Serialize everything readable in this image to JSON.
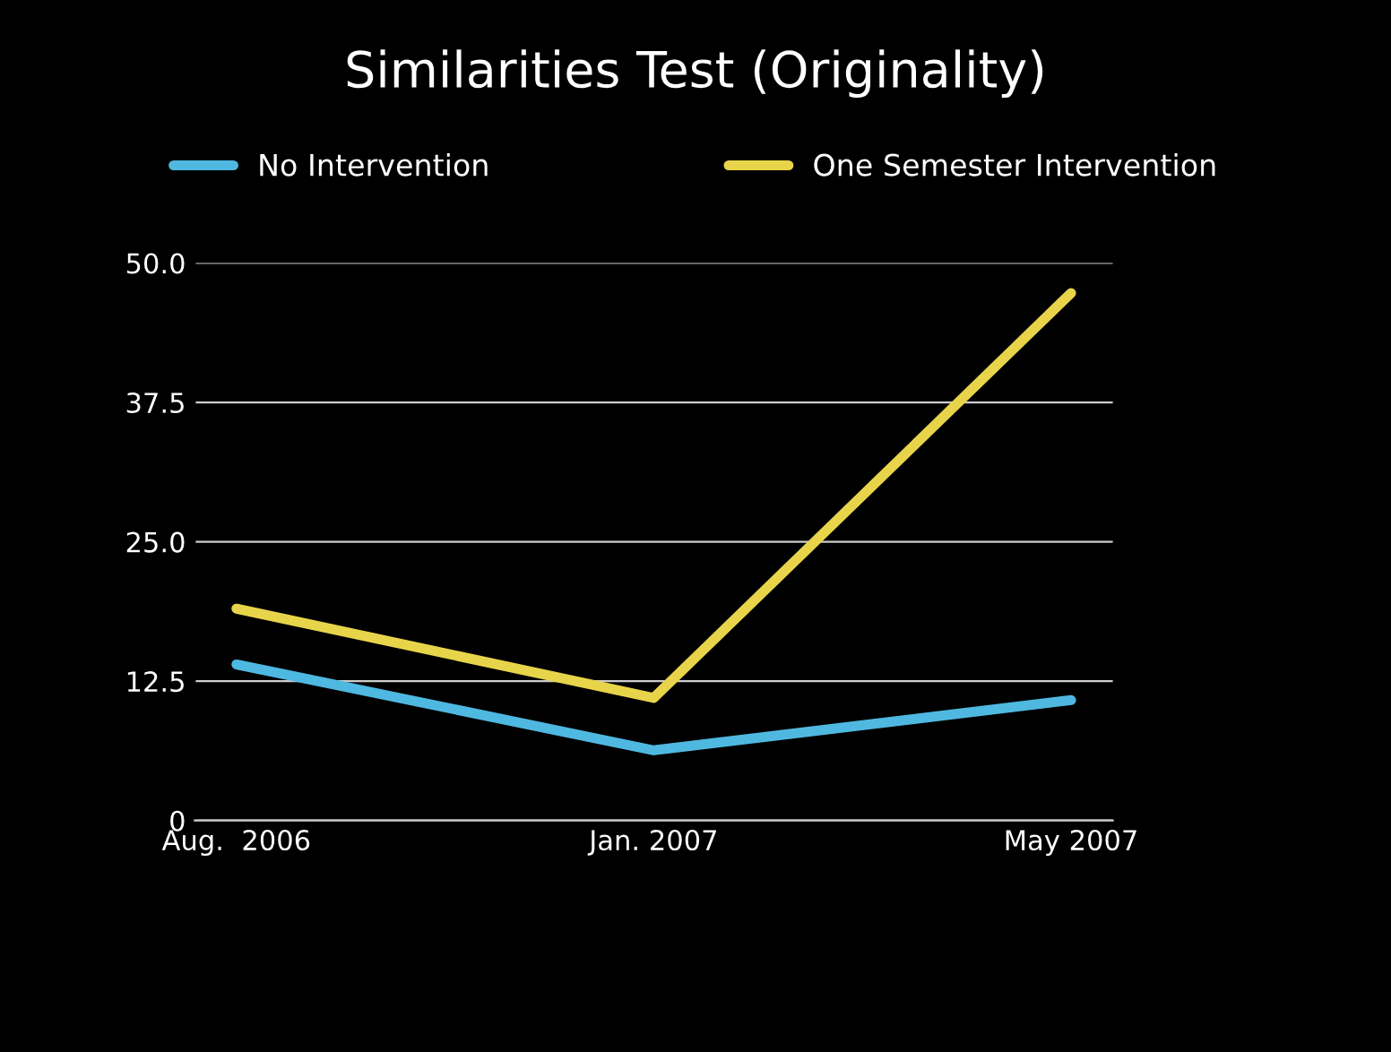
{
  "chart_data": {
    "type": "line",
    "title": "Similarities Test (Originality)",
    "categories": [
      "Aug.  2006",
      "Jan. 2007",
      "May 2007"
    ],
    "series": [
      {
        "name": "No Intervention",
        "color": "#4fb8e0",
        "values": [
          14,
          6.3,
          10.8
        ]
      },
      {
        "name": "One Semester Intervention",
        "color": "#e8d44a",
        "values": [
          19,
          11,
          47.3
        ]
      }
    ],
    "ylim": [
      0,
      50
    ],
    "yticks": [
      0,
      {
        "value": 12.5,
        "label": "12.5"
      },
      {
        "value": 25,
        "label": "25.0"
      },
      {
        "value": 37.5,
        "label": "37.5"
      },
      {
        "value": 50,
        "label": "50.0"
      }
    ],
    "grid": "y",
    "legend": "top",
    "marker": "none",
    "line_style": "solid"
  }
}
